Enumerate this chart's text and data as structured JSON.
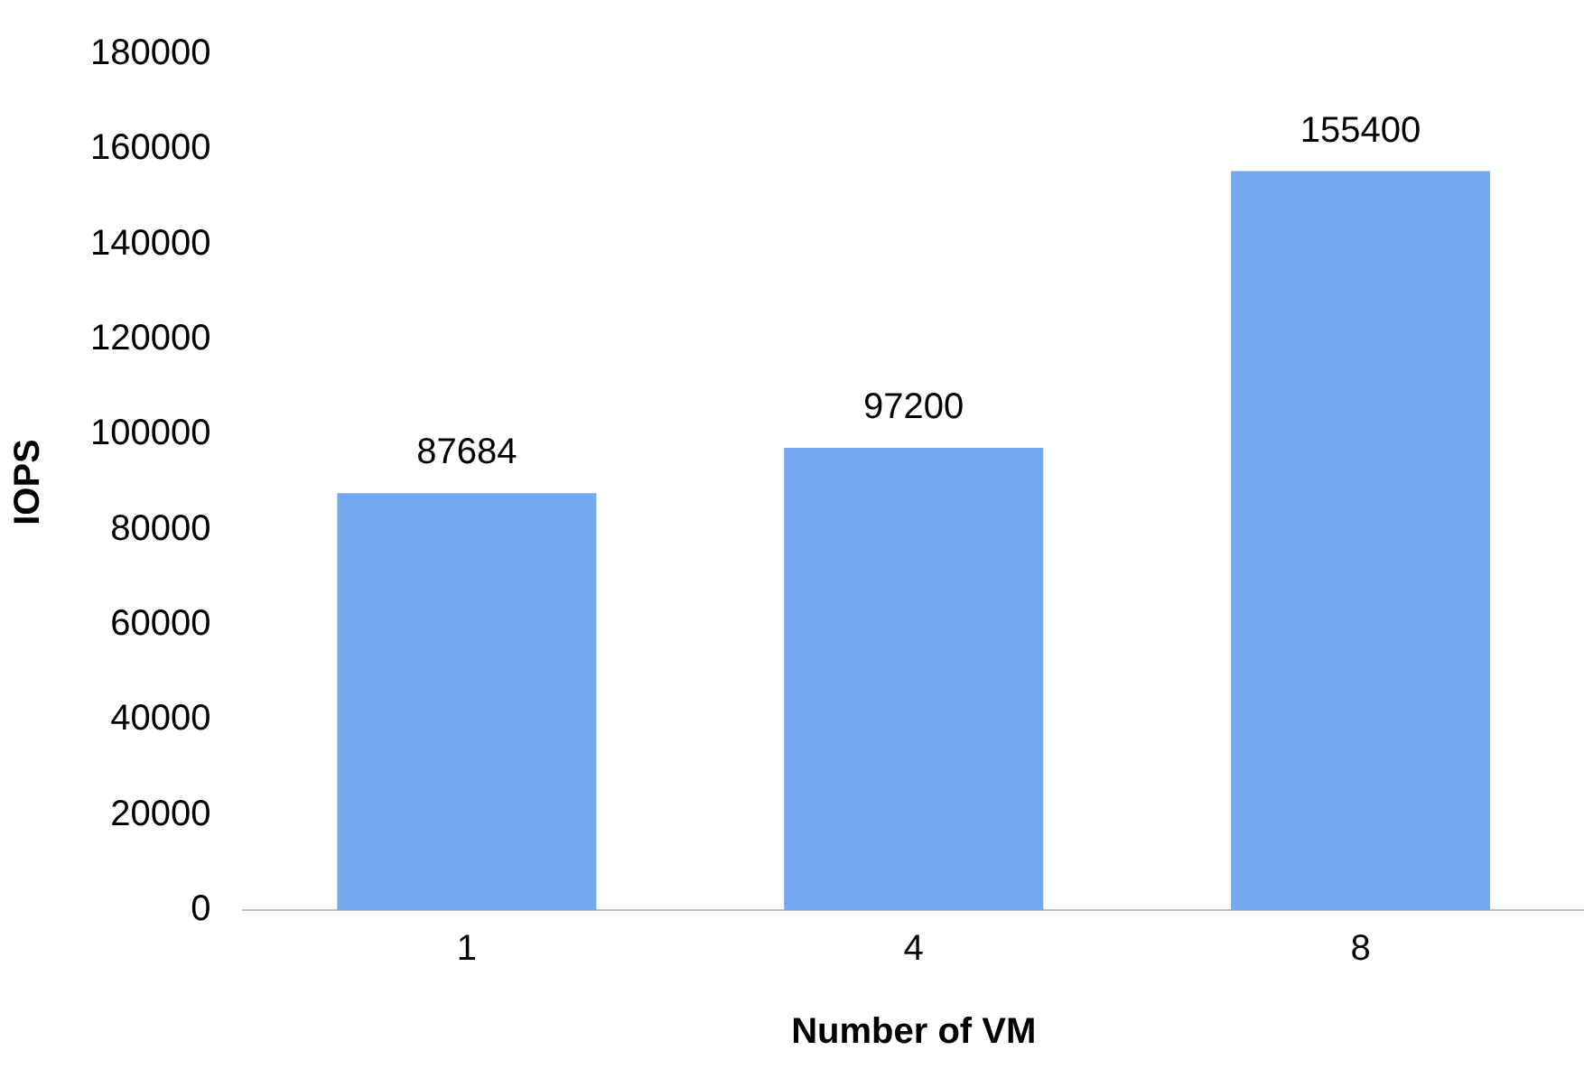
{
  "chart_data": {
    "type": "bar",
    "xlabel": "Number of VM",
    "ylabel": "IOPS",
    "categories": [
      "1",
      "4",
      "8"
    ],
    "values": [
      87684,
      97200,
      155400
    ],
    "color": "#74a9ef",
    "ylim": [
      0,
      180000
    ],
    "yticks": [
      0,
      20000,
      40000,
      60000,
      80000,
      100000,
      120000,
      140000,
      160000,
      180000
    ],
    "grid": false,
    "legend": false,
    "data_labels": true
  }
}
